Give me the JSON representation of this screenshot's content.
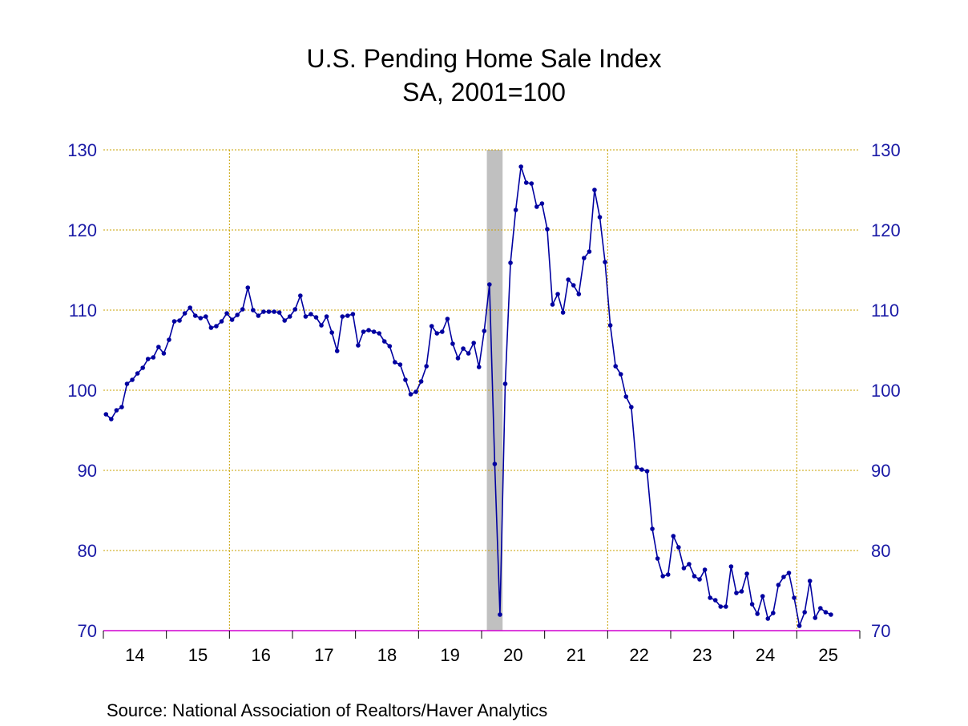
{
  "chart_data": {
    "type": "line",
    "title": "U.S. Pending Home Sale Index",
    "subtitle": "SA, 2001=100",
    "source": "Source:  National Association of Realtors/Haver Analytics",
    "xlabel": "",
    "ylabel": "",
    "ylim": [
      70,
      130
    ],
    "yticks": [
      "130",
      "120",
      "110",
      "100",
      "90",
      "80",
      "70"
    ],
    "xtick_labels": [
      "14",
      "15",
      "16",
      "17",
      "18",
      "19",
      "20",
      "21",
      "22",
      "23",
      "24",
      "25"
    ],
    "grid": true,
    "recession_shading": {
      "start": "2020-02",
      "end": "2020-04"
    },
    "colors": {
      "series": "#0000A0",
      "axis_text": "#1A1AA6",
      "grid": "#C8A000",
      "axis": "#D000D0",
      "shading": "#C0C0C0"
    },
    "series": [
      {
        "start": "2014-01",
        "frequency": "monthly",
        "values": [
          97.0,
          96.4,
          97.5,
          97.9,
          100.8,
          101.3,
          102.1,
          102.8,
          103.9,
          104.1,
          105.4,
          104.6,
          106.3,
          108.6,
          108.7,
          109.6,
          110.3,
          109.3,
          109.0,
          109.2,
          107.8,
          108.0,
          108.6,
          109.6,
          108.8,
          109.4,
          110.1,
          112.8,
          110.0,
          109.3,
          109.8,
          109.8,
          109.8,
          109.7,
          108.7,
          109.2,
          110.1,
          111.8,
          109.2,
          109.5,
          109.1,
          108.1,
          109.2,
          107.2,
          104.9,
          109.2,
          109.3,
          109.5,
          105.6,
          107.3,
          107.5,
          107.3,
          107.1,
          106.1,
          105.5,
          103.5,
          103.2,
          101.3,
          99.5,
          99.8,
          101.1,
          103.0,
          108.0,
          107.1,
          107.3,
          108.9,
          105.8,
          104.0,
          105.2,
          104.6,
          105.9,
          102.9,
          107.4,
          113.2,
          90.8,
          72.0,
          100.8,
          115.9,
          122.5,
          127.9,
          125.9,
          125.8,
          122.9,
          123.3,
          120.1,
          110.7,
          112.0,
          109.7,
          113.8,
          113.1,
          112.0,
          116.5,
          117.3,
          125.0,
          121.6,
          116.0,
          108.1,
          103.0,
          102.0,
          99.2,
          97.9,
          90.4,
          90.1,
          89.9,
          82.7,
          79.0,
          76.8,
          77.0,
          81.8,
          80.4,
          77.8,
          78.3,
          76.8,
          76.4,
          77.6,
          74.1,
          73.8,
          73.0,
          73.0,
          78.0,
          74.7,
          74.9,
          77.1,
          73.3,
          72.1,
          74.3,
          71.5,
          72.2,
          75.7,
          76.7,
          77.2,
          74.1,
          70.6,
          72.3,
          76.2,
          71.6,
          72.8,
          72.3,
          72.0
        ]
      }
    ]
  }
}
